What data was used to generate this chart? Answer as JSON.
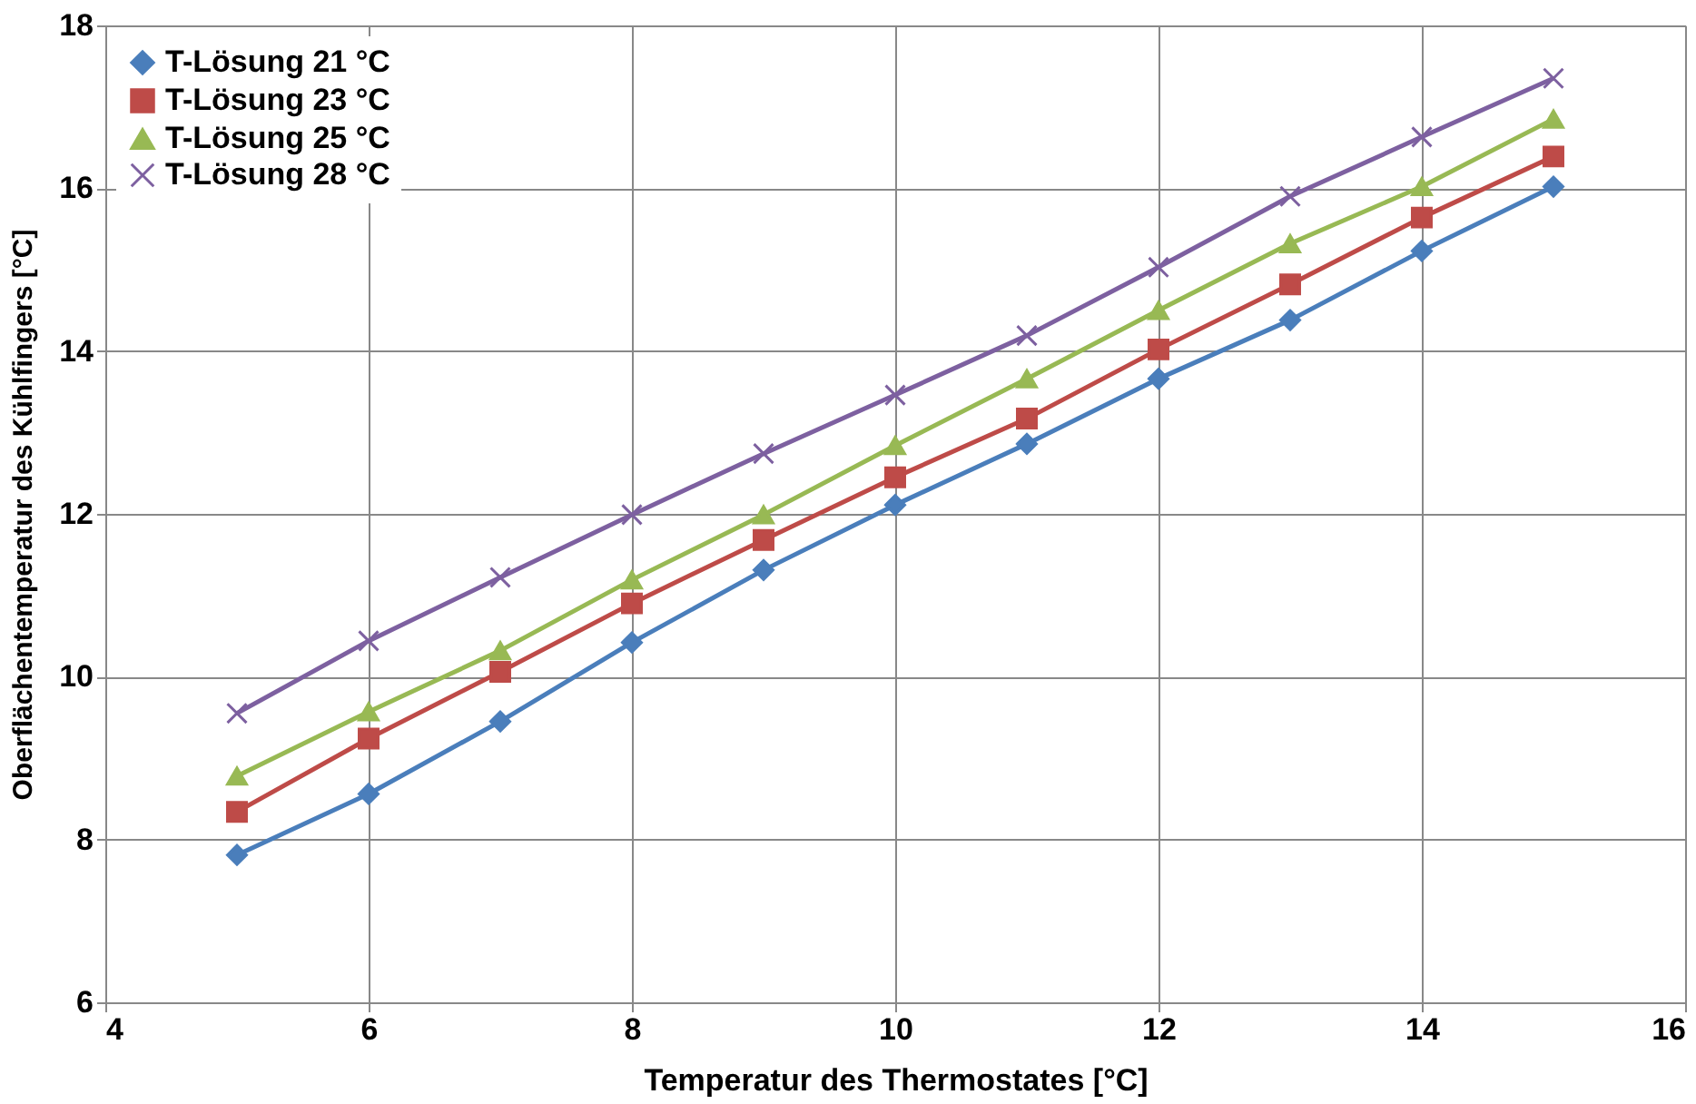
{
  "chart_data": {
    "type": "line",
    "xlabel": "Temperatur des Thermostates [°C]",
    "ylabel": "Oberflächentemperatur des Kühlfingers [°C]",
    "x": [
      5,
      6,
      7,
      8,
      9,
      10,
      11,
      12,
      13,
      14,
      15
    ],
    "series": [
      {
        "name": "T-Lösung 21 °C",
        "color": "#4a7ebb",
        "marker": "diamond",
        "values": [
          7.81,
          8.56,
          9.45,
          10.42,
          11.31,
          12.11,
          12.86,
          13.66,
          14.38,
          15.23,
          16.02
        ]
      },
      {
        "name": "T-Lösung 23 °C",
        "color": "#be4b48",
        "marker": "square",
        "values": [
          8.34,
          9.24,
          10.06,
          10.9,
          11.68,
          12.45,
          13.17,
          14.02,
          14.82,
          15.64,
          16.39
        ]
      },
      {
        "name": "T-Lösung 25 °C",
        "color": "#98b954",
        "marker": "triangle",
        "values": [
          8.78,
          9.57,
          10.32,
          11.19,
          11.99,
          12.84,
          13.66,
          14.5,
          15.32,
          16.02,
          16.85
        ]
      },
      {
        "name": "T-Lösung 28 °C",
        "color": "#7d60a0",
        "marker": "cross",
        "values": [
          9.55,
          10.44,
          11.22,
          11.99,
          12.74,
          13.46,
          14.19,
          15.03,
          15.9,
          16.63,
          17.35
        ]
      }
    ],
    "xlim": [
      4,
      16
    ],
    "xticks": [
      4,
      6,
      8,
      10,
      12,
      14,
      16
    ],
    "ylim": [
      6,
      18
    ],
    "yticks": [
      6,
      8,
      10,
      12,
      14,
      16,
      18
    ],
    "grid": true,
    "legend": "top left",
    "line_style": "solid"
  }
}
